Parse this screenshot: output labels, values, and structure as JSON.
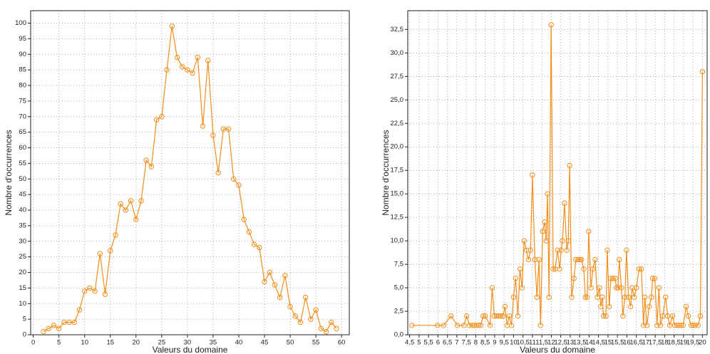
{
  "chart_data": [
    {
      "type": "line",
      "xlabel": "Valeurs du domaine",
      "ylabel": "Nombre d'occurrences",
      "color": "#f28e1b",
      "grid": true,
      "x": [
        2,
        3,
        4,
        5,
        6,
        7,
        8,
        9,
        10,
        11,
        12,
        13,
        14,
        15,
        16,
        17,
        18,
        19,
        20,
        21,
        22,
        23,
        24,
        25,
        26,
        27,
        28,
        29,
        30,
        31,
        32,
        33,
        34,
        35,
        36,
        37,
        38,
        39,
        40,
        41,
        42,
        43,
        44,
        45,
        46,
        47,
        48,
        49,
        50,
        51,
        52,
        53,
        54,
        55,
        56,
        57,
        58,
        59
      ],
      "values": [
        1,
        2,
        3,
        2,
        4,
        4,
        4,
        8,
        14,
        15,
        14,
        26,
        13,
        27,
        32,
        42,
        40,
        43,
        37,
        43,
        56,
        54,
        69,
        70,
        85,
        99,
        89,
        86,
        85,
        84,
        89,
        67,
        88,
        64,
        52,
        66,
        66,
        50,
        48,
        37,
        33,
        29,
        28,
        17,
        20,
        16,
        12,
        19,
        9,
        6,
        4,
        12,
        5,
        8,
        2,
        1,
        4,
        2
      ],
      "xlim": [
        -0.5,
        61.5
      ],
      "ylim": [
        0,
        104
      ],
      "xticks": [
        0,
        5,
        10,
        15,
        20,
        25,
        30,
        35,
        40,
        45,
        50,
        55,
        60
      ],
      "yticks": [
        0,
        5,
        10,
        15,
        20,
        25,
        30,
        35,
        40,
        45,
        50,
        55,
        60,
        65,
        70,
        75,
        80,
        85,
        90,
        95,
        100
      ]
    },
    {
      "type": "line",
      "xlabel": "Valeurs du domaine",
      "ylabel": "Nombre d'occurrences",
      "color": "#f28e1b",
      "grid": true,
      "x": [
        4.62,
        5.98,
        6.3,
        6.69,
        7.03,
        7.37,
        7.52,
        7.67,
        7.82,
        7.93,
        8.04,
        8.16,
        8.27,
        8.39,
        8.5,
        8.76,
        8.87,
        8.98,
        9.1,
        9.21,
        9.32,
        9.44,
        9.55,
        9.66,
        9.77,
        9.89,
        10.0,
        10.11,
        10.23,
        10.34,
        10.45,
        10.56,
        10.68,
        10.79,
        10.9,
        11.0,
        11.13,
        11.24,
        11.35,
        11.43,
        11.54,
        11.65,
        11.73,
        11.8,
        11.88,
        11.99,
        12.1,
        12.2,
        12.33,
        12.44,
        12.52,
        12.59,
        12.7,
        12.82,
        12.9,
        12.97,
        13.08,
        13.2,
        13.3,
        13.42,
        13.53,
        13.6,
        13.72,
        13.8,
        13.9,
        13.98,
        14.1,
        14.2,
        14.32,
        14.44,
        14.55,
        14.62,
        14.7,
        14.77,
        14.89,
        14.96,
        15.07,
        15.15,
        15.26,
        15.38,
        15.45,
        15.53,
        15.6,
        15.71,
        15.79,
        15.9,
        15.98,
        16.09,
        16.2,
        16.28,
        16.39,
        16.5,
        16.65,
        16.77,
        16.88,
        16.95,
        17.06,
        17.18,
        17.3,
        17.37,
        17.48,
        17.6,
        17.7,
        17.78,
        17.9,
        18.05,
        18.16,
        18.27,
        18.42,
        18.53,
        18.65,
        18.76,
        18.87,
        18.98,
        19.14,
        19.25,
        19.4,
        19.5,
        19.62,
        19.77,
        19.89,
        20.0
      ],
      "values": [
        1,
        1,
        1,
        2,
        1,
        1,
        2,
        1,
        1,
        1,
        1,
        1,
        1,
        2,
        2,
        1,
        5,
        2,
        2,
        2,
        2,
        2,
        3,
        1,
        2,
        1,
        4,
        6,
        2,
        7,
        5,
        10,
        9,
        8,
        9,
        17,
        8,
        4,
        8,
        1,
        11,
        12,
        10,
        15,
        4,
        33,
        7,
        7,
        9,
        7,
        9,
        10,
        14,
        9,
        10,
        18,
        4,
        6,
        8,
        8,
        8,
        8,
        7,
        4,
        4,
        11,
        5,
        7,
        8,
        4,
        5,
        3,
        4,
        2,
        2,
        9,
        3,
        6,
        6,
        6,
        5,
        5,
        8,
        5,
        2,
        4,
        9,
        4,
        3,
        5,
        4,
        5,
        7,
        7,
        1,
        4,
        1,
        3,
        4,
        6,
        6,
        1,
        5,
        1,
        2,
        4,
        2,
        1,
        2,
        1,
        1,
        1,
        1,
        1,
        3,
        2,
        1,
        1,
        1,
        1,
        2,
        28
      ],
      "xlim": [
        4.4,
        20.25
      ],
      "ylim": [
        0,
        34.5
      ],
      "xticks": [
        {
          "value": 4.5,
          "label": "4,5"
        },
        5,
        {
          "value": 5.5,
          "label": "5,5"
        },
        6,
        {
          "value": 6.5,
          "label": "6,5"
        },
        7,
        {
          "value": 7.5,
          "label": "7,5"
        },
        8,
        {
          "value": 8.5,
          "label": "8,5"
        },
        9,
        {
          "value": 9.5,
          "label": "9,5"
        },
        10,
        {
          "value": 10.5,
          "label": "10,5"
        },
        11,
        {
          "value": 11.5,
          "label": "11,5"
        },
        12,
        {
          "value": 12.5,
          "label": "12,5"
        },
        13,
        {
          "value": 13.5,
          "label": "13,5"
        },
        14,
        {
          "value": 14.5,
          "label": "14,5"
        },
        15,
        {
          "value": 15.5,
          "label": "15,5"
        },
        16,
        {
          "value": 16.5,
          "label": "16,5"
        },
        17,
        {
          "value": 17.5,
          "label": "17,5"
        },
        18,
        {
          "value": 18.5,
          "label": "18,5"
        },
        19,
        {
          "value": 19.5,
          "label": "19,5"
        },
        20
      ],
      "yticks": [
        {
          "value": 0,
          "label": "0,0"
        },
        {
          "value": 2.5,
          "label": "2,5"
        },
        {
          "value": 5,
          "label": "5,0"
        },
        {
          "value": 7.5,
          "label": "7,5"
        },
        {
          "value": 10,
          "label": "10,0"
        },
        {
          "value": 12.5,
          "label": "12,5"
        },
        {
          "value": 15,
          "label": "15,0"
        },
        {
          "value": 17.5,
          "label": "17,5"
        },
        {
          "value": 20,
          "label": "20,0"
        },
        {
          "value": 22.5,
          "label": "22,5"
        },
        {
          "value": 25,
          "label": "25,0"
        },
        {
          "value": 27.5,
          "label": "27,5"
        },
        {
          "value": 30,
          "label": "30,0"
        },
        {
          "value": 32.5,
          "label": "32,5"
        }
      ]
    }
  ]
}
